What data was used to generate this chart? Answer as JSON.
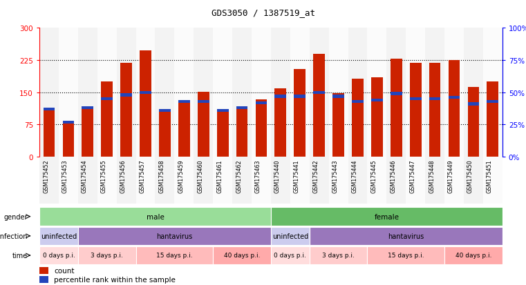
{
  "title": "GDS3050 / 1387519_at",
  "samples": [
    "GSM175452",
    "GSM175453",
    "GSM175454",
    "GSM175455",
    "GSM175456",
    "GSM175457",
    "GSM175458",
    "GSM175459",
    "GSM175460",
    "GSM175461",
    "GSM175462",
    "GSM175463",
    "GSM175440",
    "GSM175441",
    "GSM175442",
    "GSM175443",
    "GSM175444",
    "GSM175445",
    "GSM175446",
    "GSM175447",
    "GSM175448",
    "GSM175449",
    "GSM175450",
    "GSM175451"
  ],
  "count_values": [
    110,
    80,
    115,
    175,
    218,
    248,
    105,
    125,
    152,
    105,
    115,
    133,
    160,
    205,
    240,
    148,
    182,
    185,
    228,
    218,
    218,
    225,
    162,
    175
  ],
  "percentile_values": [
    37,
    27,
    38,
    45,
    48,
    50,
    36,
    43,
    43,
    36,
    38,
    42,
    47,
    47,
    50,
    47,
    43,
    44,
    49,
    45,
    45,
    46,
    41,
    43
  ],
  "bar_color": "#cc2200",
  "pct_color": "#2244bb",
  "gender_groups": [
    {
      "label": "male",
      "start": 0,
      "end": 12,
      "color": "#99dd99"
    },
    {
      "label": "female",
      "start": 12,
      "end": 24,
      "color": "#66bb66"
    }
  ],
  "infection_groups": [
    {
      "label": "uninfected",
      "start": 0,
      "end": 2,
      "color": "#ccccee"
    },
    {
      "label": "hantavirus",
      "start": 2,
      "end": 12,
      "color": "#9977bb"
    },
    {
      "label": "uninfected",
      "start": 12,
      "end": 14,
      "color": "#ccccee"
    },
    {
      "label": "hantavirus",
      "start": 14,
      "end": 24,
      "color": "#9977bb"
    }
  ],
  "time_groups": [
    {
      "label": "0 days p.i.",
      "start": 0,
      "end": 2,
      "color": "#ffdddd"
    },
    {
      "label": "3 days p.i.",
      "start": 2,
      "end": 5,
      "color": "#ffcccc"
    },
    {
      "label": "15 days p.i.",
      "start": 5,
      "end": 9,
      "color": "#ffbbbb"
    },
    {
      "label": "40 days p.i.",
      "start": 9,
      "end": 12,
      "color": "#ffaaaa"
    },
    {
      "label": "0 days p.i.",
      "start": 12,
      "end": 14,
      "color": "#ffdddd"
    },
    {
      "label": "3 days p.i.",
      "start": 14,
      "end": 17,
      "color": "#ffcccc"
    },
    {
      "label": "15 days p.i.",
      "start": 17,
      "end": 21,
      "color": "#ffbbbb"
    },
    {
      "label": "40 days p.i.",
      "start": 21,
      "end": 24,
      "color": "#ffaaaa"
    }
  ],
  "ylim_left": [
    0,
    300
  ],
  "ylim_right": [
    0,
    100
  ],
  "yticks_left": [
    0,
    75,
    150,
    225,
    300
  ],
  "ytick_labels_left": [
    "0",
    "75",
    "150",
    "225",
    "300"
  ],
  "yticks_right": [
    0,
    25,
    50,
    75,
    100
  ],
  "ytick_labels_right": [
    "0%",
    "25%",
    "50%",
    "75%",
    "100%"
  ],
  "hgrid_lines": [
    75,
    150,
    225
  ],
  "figsize": [
    7.61,
    4.14
  ],
  "dpi": 100
}
